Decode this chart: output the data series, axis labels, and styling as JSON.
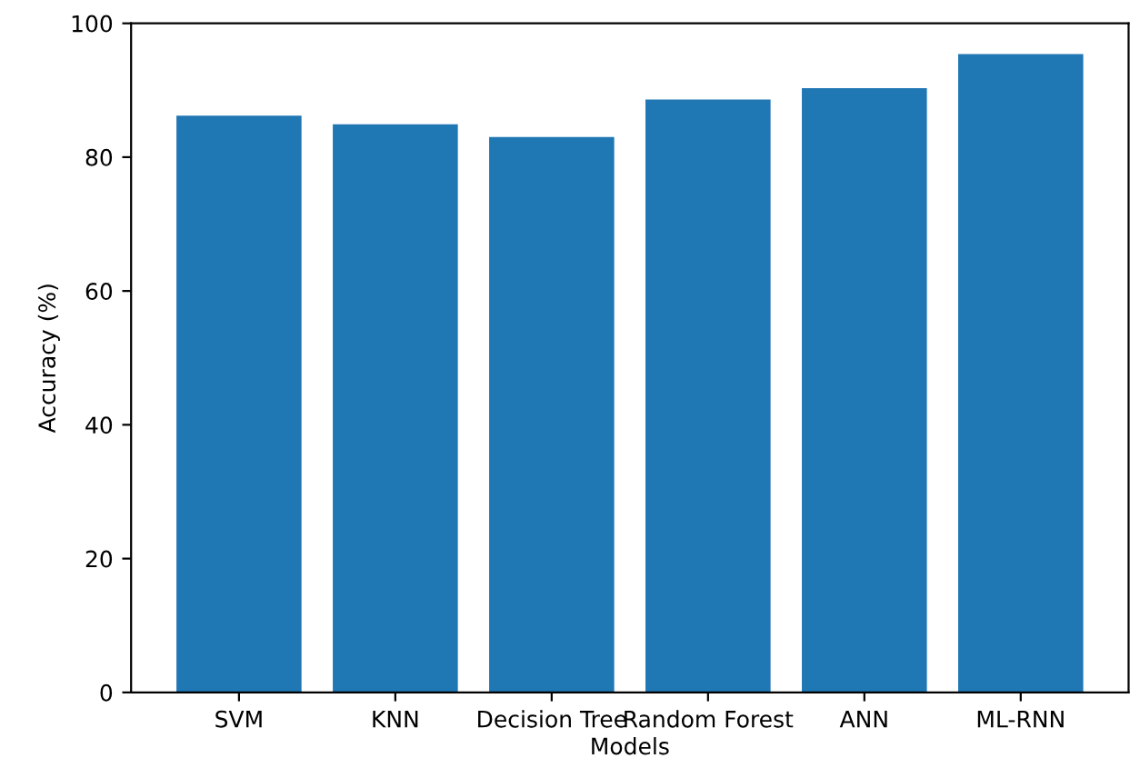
{
  "chart_data": {
    "type": "bar",
    "xlabel": "Models",
    "ylabel": "Accuracy (%)",
    "categories": [
      "SVM",
      "KNN",
      "Decision Tree",
      "Random Forest",
      "ANN",
      "ML-RNN"
    ],
    "values": [
      86.2,
      84.9,
      83.0,
      88.6,
      90.3,
      95.4
    ],
    "color": "#1f77b4",
    "ylim": [
      0,
      100
    ],
    "yticks": [
      0,
      20,
      40,
      60,
      80,
      100
    ],
    "grid": false
  }
}
